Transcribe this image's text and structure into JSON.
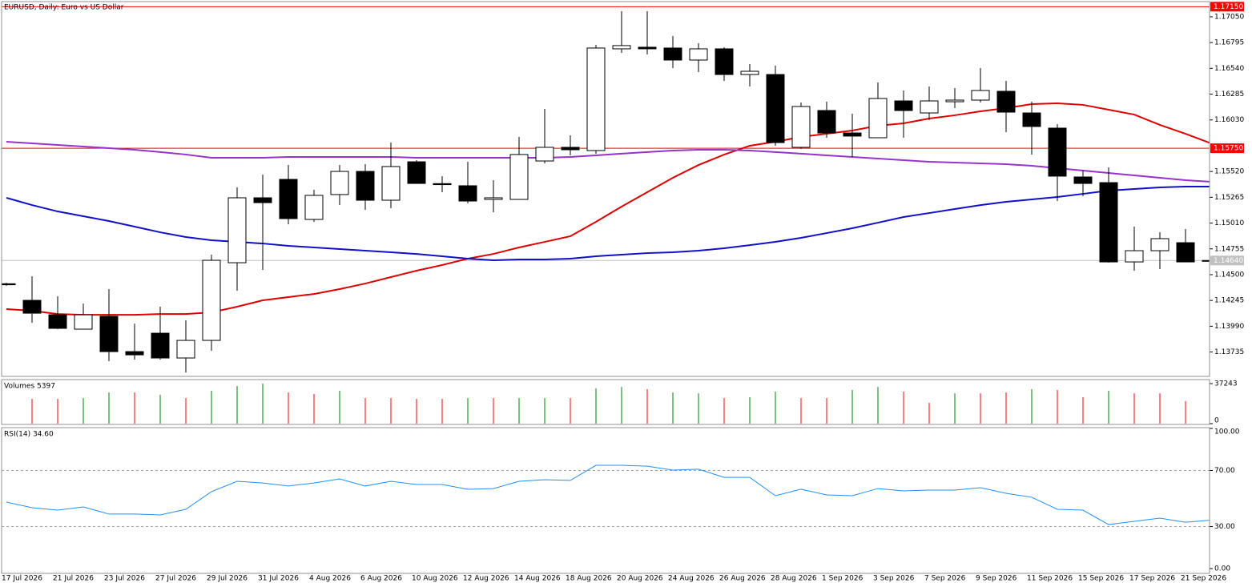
{
  "chart_data": [
    {
      "type": "candlestick",
      "title": "EURUSD, Daily: Euro vs US Dollar",
      "categories": [
        "17 Jul 2026",
        null,
        "21 Jul 2026",
        null,
        "23 Jul 2026",
        null,
        "27 Jul 2026",
        null,
        "29 Jul 2026",
        null,
        "31 Jul 2026",
        null,
        "4 Aug 2026",
        null,
        "6 Aug 2026",
        null,
        "10 Aug 2026",
        null,
        "12 Aug 2026",
        null,
        "14 Aug 2026",
        null,
        "18 Aug 2026",
        null,
        "20 Aug 2026",
        null,
        "24 Aug 2026",
        null,
        "26 Aug 2026",
        null,
        "28 Aug 2026",
        null,
        "1 Sep 2026",
        null,
        "3 Sep 2026",
        null,
        "7 Sep 2026",
        null,
        "9 Sep 2026",
        null,
        "11 Sep 2026",
        null,
        "15 Sep 2026",
        null,
        "17 Sep 2026",
        null,
        "21 Sep 2026",
        null
      ],
      "open": [
        1.1441,
        1.14246,
        1.14103,
        1.13961,
        1.14088,
        1.13739,
        1.13921,
        1.13676,
        1.1385,
        1.14618,
        1.1526,
        1.15442,
        1.15046,
        1.15292,
        1.15521,
        1.15236,
        1.15616,
        1.154,
        1.15379,
        1.15244,
        1.15244,
        1.15624,
        1.15759,
        1.15727,
        1.16733,
        1.16749,
        1.16741,
        1.16622,
        1.16733,
        1.16479,
        1.16479,
        1.15759,
        1.16123,
        1.15901,
        1.15854,
        1.16218,
        1.16099,
        1.1621,
        1.16226,
        1.16313,
        1.16099,
        1.15949,
        1.15466,
        1.1541,
        1.14626,
        1.14737,
        1.14816,
        1.14634
      ],
      "high": [
        1.1442,
        1.14484,
        1.14286,
        1.14214,
        1.14357,
        1.14016,
        1.14183,
        1.14048,
        1.14698,
        1.15363,
        1.15489,
        1.15585,
        1.15339,
        1.15585,
        1.15592,
        1.15806,
        1.15632,
        1.15474,
        1.15616,
        1.15434,
        1.15862,
        1.16139,
        1.15878,
        1.16772,
        1.17105,
        1.17105,
        1.1686,
        1.16788,
        1.16749,
        1.16582,
        1.16567,
        1.16202,
        1.1621,
        1.16091,
        1.164,
        1.16321,
        1.16361,
        1.16345,
        1.16543,
        1.16416,
        1.1621,
        1.15988,
        1.15529,
        1.15561,
        1.14975,
        1.14919,
        1.14951,
        1.14784
      ],
      "low": [
        1.1439,
        1.14024,
        1.1396,
        1.1396,
        1.13644,
        1.1366,
        1.1366,
        1.13533,
        1.13747,
        1.14341,
        1.14547,
        1.14998,
        1.15022,
        1.15189,
        1.15141,
        1.15157,
        1.154,
        1.15315,
        1.15204,
        1.15117,
        1.15244,
        1.156,
        1.1568,
        1.15695,
        1.16693,
        1.16677,
        1.16543,
        1.16503,
        1.16416,
        1.16361,
        1.15775,
        1.15743,
        1.15854,
        1.15664,
        1.15854,
        1.15854,
        1.16028,
        1.16147,
        1.16202,
        1.15909,
        1.15688,
        1.15228,
        1.15276,
        1.14618,
        1.14539,
        1.14555,
        1.14626,
        1.14634
      ],
      "close": [
        1.144,
        1.14119,
        1.13969,
        1.14103,
        1.13739,
        1.13707,
        1.13676,
        1.1385,
        1.14642,
        1.1526,
        1.15212,
        1.15054,
        1.15284,
        1.15521,
        1.15236,
        1.15569,
        1.15402,
        1.1539,
        1.15228,
        1.1526,
        1.15688,
        1.15759,
        1.15735,
        1.16741,
        1.16765,
        1.16733,
        1.16622,
        1.16733,
        1.16479,
        1.16511,
        1.15806,
        1.16163,
        1.15901,
        1.1587,
        1.16242,
        1.16123,
        1.16218,
        1.16226,
        1.16321,
        1.16107,
        1.15965,
        1.15474,
        1.15402,
        1.14626,
        1.14737,
        1.14856,
        1.14626,
        1.1464
      ],
      "up_color": "#ffffff",
      "down_color": "#000000",
      "series": [
        {
          "color": "#e00000",
          "values": [
            1.14159,
            1.14143,
            1.14111,
            1.14103,
            1.14103,
            1.14103,
            1.14111,
            1.14111,
            1.14127,
            1.14183,
            1.14246,
            1.14278,
            1.14309,
            1.14357,
            1.14412,
            1.14476,
            1.14539,
            1.14595,
            1.14658,
            1.14705,
            1.14769,
            1.14824,
            1.1488,
            1.15022,
            1.15173,
            1.15315,
            1.15458,
            1.15584,
            1.15687,
            1.15775,
            1.15814,
            1.15862,
            1.15893,
            1.15925,
            1.15973,
            1.15996,
            1.16044,
            1.16076,
            1.16115,
            1.16147,
            1.16186,
            1.16194,
            1.16179,
            1.16131,
            1.16083,
            1.15981,
            1.15893,
            1.15798
          ]
        },
        {
          "color": "#1010c8",
          "values": [
            1.1526,
            1.15188,
            1.15125,
            1.15078,
            1.1503,
            1.14975,
            1.14919,
            1.14872,
            1.1484,
            1.14824,
            1.14808,
            1.14785,
            1.14769,
            1.14753,
            1.14737,
            1.14721,
            1.14705,
            1.14682,
            1.14658,
            1.14642,
            1.1465,
            1.1465,
            1.14658,
            1.14682,
            1.14698,
            1.14713,
            1.14721,
            1.14737,
            1.14761,
            1.14792,
            1.14824,
            1.14864,
            1.14911,
            1.14959,
            1.15014,
            1.1507,
            1.15109,
            1.15149,
            1.15188,
            1.1522,
            1.15244,
            1.15268,
            1.15299,
            1.15331,
            1.15347,
            1.15363,
            1.15371,
            1.15371
          ]
        },
        {
          "color": "#9932cc",
          "values": [
            1.15814,
            1.15798,
            1.15783,
            1.15767,
            1.15751,
            1.15735,
            1.15712,
            1.15688,
            1.15656,
            1.15656,
            1.15656,
            1.15664,
            1.15664,
            1.15664,
            1.15664,
            1.15664,
            1.15656,
            1.15656,
            1.15656,
            1.15656,
            1.15656,
            1.15656,
            1.15664,
            1.1568,
            1.15696,
            1.15712,
            1.15727,
            1.15735,
            1.15735,
            1.15727,
            1.15712,
            1.15696,
            1.1568,
            1.15664,
            1.15648,
            1.15632,
            1.15616,
            1.15608,
            1.156,
            1.15592,
            1.15577,
            1.15553,
            1.15529,
            1.15505,
            1.15482,
            1.15458,
            1.15434,
            1.15418
          ]
        }
      ],
      "hlines": [
        {
          "value": 1.1715,
          "label": "1.17150",
          "color": "#ff0000"
        },
        {
          "value": 1.1575,
          "label": "1.15750",
          "color": "#ff0000"
        },
        {
          "value": 1.1464,
          "label": "1.14640",
          "color": "#c0c0c0"
        }
      ],
      "ylim": [
        1.13494,
        1.172
      ],
      "yticks": [
        {
          "value": 1.1705,
          "label": "1.17050"
        },
        1.16795,
        {
          "value": 1.1654,
          "label": "1.16540"
        },
        1.16285,
        {
          "value": 1.1603,
          "label": "1.16030"
        },
        {
          "value": 1.1552,
          "label": "1.15520"
        },
        1.15265,
        {
          "value": 1.1501,
          "label": "1.15010"
        },
        1.14755,
        {
          "value": 1.145,
          "label": "1.14500"
        },
        1.14245,
        {
          "value": 1.1399,
          "label": "1.13990"
        },
        1.13735
      ]
    },
    {
      "type": "bar",
      "title": "Volumes 5397",
      "values": [
        null,
        23095,
        23095,
        23840,
        29055,
        29055,
        26820,
        23840,
        30545,
        35015,
        37243,
        29055,
        27565,
        30545,
        23840,
        23840,
        23095,
        23095,
        23840,
        23840,
        23840,
        23840,
        23840,
        32780,
        34270,
        32035,
        29055,
        28310,
        23840,
        24585,
        29800,
        23840,
        23840,
        31290,
        34270,
        29800,
        19370,
        28310,
        28310,
        29055,
        32035,
        31290,
        24585,
        30545,
        28310,
        28310,
        20860,
        5397
      ],
      "colors": [
        "#ff0000",
        "#ff0000",
        "#ff0000",
        "#008000",
        "#008000",
        "#ff0000",
        "#008000",
        "#ff0000",
        "#008000",
        "#008000",
        "#008000",
        "#ff0000",
        "#ff0000",
        "#008000",
        "#ff0000",
        "#ff0000",
        "#ff0000",
        "#ff0000",
        "#008000",
        "#ff0000",
        "#008000",
        "#008000",
        "#ff0000",
        "#008000",
        "#008000",
        "#ff0000",
        "#008000",
        "#008000",
        "#ff0000",
        "#008000",
        "#008000",
        "#ff0000",
        "#ff0000",
        "#008000",
        "#008000",
        "#ff0000",
        "#ff0000",
        "#008000",
        "#ff0000",
        "#ff0000",
        "#008000",
        "#ff0000",
        "#ff0000",
        "#008000",
        "#ff0000",
        "#ff0000",
        "#ff0000",
        "#ff0000"
      ],
      "ylim": [
        0,
        37243
      ],
      "yticks": [
        37243,
        0
      ]
    },
    {
      "type": "line",
      "title": "RSI(14) 34.60",
      "color": "#1e90ff",
      "values": [
        47.4,
        43.4,
        41.7,
        44.0,
        38.9,
        38.9,
        38.3,
        42.3,
        54.9,
        62.3,
        61.1,
        58.9,
        61.1,
        64.0,
        58.9,
        62.3,
        60.0,
        60.0,
        56.6,
        57.1,
        62.3,
        63.4,
        62.9,
        73.7,
        73.7,
        73.1,
        70.3,
        70.9,
        65.1,
        65.1,
        52.0,
        56.6,
        52.6,
        52.0,
        57.1,
        55.4,
        56.0,
        56.0,
        57.7,
        53.7,
        50.9,
        42.3,
        41.7,
        31.4,
        33.7,
        36.0,
        33.1,
        34.6
      ],
      "ylim": [
        0,
        100
      ],
      "yticks": [
        {
          "value": 100,
          "label": "100.00"
        },
        {
          "value": 70,
          "label": "70.00"
        },
        {
          "value": 30,
          "label": "30.00"
        },
        {
          "value": 0,
          "label": "0.00"
        }
      ],
      "grid": true
    }
  ]
}
